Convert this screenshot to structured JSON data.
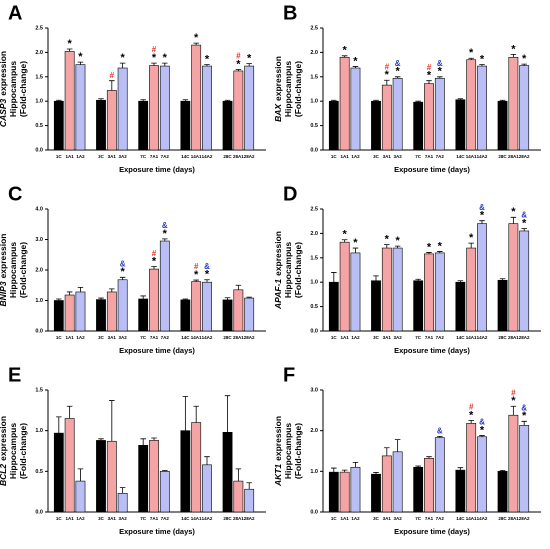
{
  "chart_data": [
    {
      "type": "bar",
      "panel": "A",
      "gene": "CASP3",
      "ylabel": [
        "expression",
        "Hippocampus",
        "(Fold-change)"
      ],
      "xlabel": "Exposure time (days)",
      "categories": [
        "1C",
        "1A1",
        "1A2",
        "3C",
        "3A1",
        "3A2",
        "7C",
        "7A1",
        "7A2",
        "14C",
        "14A1",
        "14A2",
        "28C",
        "28A1",
        "28A2"
      ],
      "values": [
        1.0,
        2.02,
        1.75,
        1.02,
        1.22,
        1.68,
        1.0,
        1.73,
        1.72,
        1.0,
        2.15,
        1.72,
        1.0,
        1.62,
        1.72
      ],
      "errors": [
        0.02,
        0.05,
        0.05,
        0.03,
        0.2,
        0.1,
        0.03,
        0.05,
        0.06,
        0.03,
        0.04,
        0.03,
        0.02,
        0.03,
        0.05
      ],
      "annotations": [
        [],
        [
          "*"
        ],
        [
          "*"
        ],
        [],
        [
          "#"
        ],
        [
          "*"
        ],
        [],
        [
          "*",
          "#"
        ],
        [
          "*"
        ],
        [],
        [
          "*"
        ],
        [
          "*"
        ],
        [],
        [
          "*",
          "#"
        ],
        [
          "*"
        ]
      ],
      "ylim": [
        0,
        2.5
      ],
      "yticks": [
        {
          "value": 0,
          "label": "0.0"
        },
        0.5,
        {
          "value": 1,
          "label": "1.0"
        },
        1.5,
        {
          "value": 2,
          "label": "2.0"
        },
        2.5
      ]
    },
    {
      "type": "bar",
      "panel": "B",
      "gene": "BAX",
      "ylabel": [
        "expression",
        "Hippocampus",
        "(Fold-change)"
      ],
      "xlabel": "Exposure time (days)",
      "categories": [
        "1C",
        "1A1",
        "1A2",
        "3C",
        "3A1",
        "3A2",
        "7C",
        "7A1",
        "7A2",
        "14C",
        "14A1",
        "14A2",
        "28C",
        "28A1",
        "28A2"
      ],
      "values": [
        1.0,
        1.9,
        1.68,
        1.0,
        1.33,
        1.47,
        0.98,
        1.36,
        1.47,
        1.03,
        1.85,
        1.72,
        1.0,
        1.9,
        1.73
      ],
      "errors": [
        0.02,
        0.03,
        0.03,
        0.02,
        0.1,
        0.03,
        0.02,
        0.06,
        0.03,
        0.02,
        0.03,
        0.03,
        0.02,
        0.06,
        0.03
      ],
      "annotations": [
        [],
        [
          "*"
        ],
        [
          "*"
        ],
        [],
        [
          "*",
          "#"
        ],
        [
          "*",
          "&"
        ],
        [],
        [
          "*",
          "#"
        ],
        [
          "*",
          "&"
        ],
        [],
        [
          "*"
        ],
        [
          "*"
        ],
        [],
        [
          "*"
        ],
        [
          "*"
        ]
      ],
      "ylim": [
        0,
        2.5
      ],
      "yticks": [
        {
          "value": 0,
          "label": "0.0"
        },
        0.5,
        {
          "value": 1,
          "label": "1.0"
        },
        1.5,
        {
          "value": 2,
          "label": "2.0"
        },
        2.5
      ]
    },
    {
      "type": "bar",
      "panel": "C",
      "gene": "BNIP3",
      "ylabel": [
        "expression",
        "Hippocampus",
        "(Fold-change)"
      ],
      "xlabel": "Exposure time (days)",
      "categories": [
        "1C",
        "1A1",
        "1A2",
        "3C",
        "3A1",
        "3A2",
        "7C",
        "7A1",
        "7A2",
        "14C",
        "14A1",
        "14A2",
        "28C",
        "28A1",
        "28A2"
      ],
      "values": [
        1.0,
        1.18,
        1.28,
        1.03,
        1.28,
        1.68,
        1.05,
        2.03,
        2.95,
        1.02,
        1.62,
        1.6,
        1.02,
        1.35,
        1.08
      ],
      "errors": [
        0.05,
        0.1,
        0.15,
        0.05,
        0.1,
        0.08,
        0.1,
        0.08,
        0.07,
        0.03,
        0.05,
        0.08,
        0.07,
        0.15,
        0.03
      ],
      "annotations": [
        [],
        [],
        [],
        [],
        [],
        [
          "*",
          "&"
        ],
        [],
        [
          "*",
          "#"
        ],
        [
          "*",
          "&"
        ],
        [],
        [
          "*",
          "#"
        ],
        [
          "*",
          "&"
        ],
        [],
        [],
        []
      ],
      "ylim": [
        0,
        4
      ],
      "yticks": [
        {
          "value": 0,
          "label": "0.0"
        },
        {
          "value": 1,
          "label": "1.0"
        },
        {
          "value": 2,
          "label": "2.0"
        },
        {
          "value": 3,
          "label": "3.0"
        },
        {
          "value": 4,
          "label": "4.0"
        }
      ]
    },
    {
      "type": "bar",
      "panel": "D",
      "gene": "APAF-1",
      "ylabel": [
        "expression",
        "Hippocampus",
        "(Fold-change)"
      ],
      "xlabel": "Exposure time (days)",
      "categories": [
        "1C",
        "1A1",
        "1A2",
        "3C",
        "3A1",
        "3A2",
        "7C",
        "7A1",
        "7A2",
        "14C",
        "14A1",
        "14A2",
        "28C",
        "28A1",
        "28A2"
      ],
      "values": [
        1.0,
        1.82,
        1.6,
        1.03,
        1.7,
        1.7,
        1.03,
        1.58,
        1.6,
        1.0,
        1.7,
        2.2,
        1.04,
        2.2,
        2.05
      ],
      "errors": [
        0.2,
        0.05,
        0.1,
        0.1,
        0.07,
        0.04,
        0.03,
        0.03,
        0.03,
        0.03,
        0.1,
        0.06,
        0.03,
        0.13,
        0.05
      ],
      "annotations": [
        [],
        [
          "*"
        ],
        [
          "*"
        ],
        [],
        [
          "*"
        ],
        [
          "*"
        ],
        [],
        [
          "*"
        ],
        [
          "*"
        ],
        [],
        [
          "*"
        ],
        [
          "*",
          "&"
        ],
        [],
        [
          "*"
        ],
        [
          "*",
          "&"
        ]
      ],
      "ylim": [
        0,
        2.5
      ],
      "yticks": [
        {
          "value": 0,
          "label": "0.0"
        },
        0.5,
        {
          "value": 1,
          "label": "1.0"
        },
        1.5,
        {
          "value": 2,
          "label": "2.0"
        },
        2.5
      ]
    },
    {
      "type": "bar",
      "panel": "E",
      "gene": "BCL2",
      "ylabel": [
        "expression",
        "Hippocampus",
        "(Fold-change)"
      ],
      "xlabel": "Exposure time (days)",
      "categories": [
        "1C",
        "1A1",
        "1A2",
        "3C",
        "3A1",
        "3A2",
        "7C",
        "7A1",
        "7A2",
        "14C",
        "14A1",
        "14A2",
        "28C",
        "28A1",
        "28A2"
      ],
      "values": [
        0.97,
        1.15,
        0.38,
        0.88,
        0.87,
        0.23,
        0.82,
        0.88,
        0.5,
        1.0,
        1.1,
        0.58,
        0.98,
        0.38,
        0.28
      ],
      "errors": [
        0.2,
        0.15,
        0.15,
        0.02,
        0.5,
        0.07,
        0.08,
        0.03,
        0.01,
        0.42,
        0.2,
        0.1,
        0.45,
        0.15,
        0.08
      ],
      "annotations": [
        [],
        [],
        [],
        [],
        [],
        [],
        [],
        [],
        [],
        [],
        [],
        [],
        [],
        [],
        []
      ],
      "ylim": [
        0,
        1.5
      ],
      "yticks": [
        {
          "value": 0,
          "label": "0.0"
        },
        0.5,
        {
          "value": 1,
          "label": "1.0"
        },
        1.5
      ]
    },
    {
      "type": "bar",
      "panel": "F",
      "gene": "AKT1",
      "ylabel": [
        "expression",
        "Hippocampus",
        "(Fold-change)"
      ],
      "xlabel": "Exposure time (days)",
      "categories": [
        "1C",
        "1A1",
        "1A2",
        "3C",
        "3A1",
        "3A2",
        "7C",
        "7A1",
        "7A2",
        "14C",
        "14A1",
        "14A2",
        "28C",
        "28A1",
        "28A2"
      ],
      "values": [
        0.98,
        0.98,
        1.1,
        0.93,
        1.38,
        1.48,
        1.1,
        1.32,
        1.83,
        1.03,
        2.18,
        1.85,
        1.0,
        2.38,
        2.13
      ],
      "errors": [
        0.1,
        0.05,
        0.12,
        0.04,
        0.2,
        0.3,
        0.03,
        0.04,
        0.03,
        0.06,
        0.07,
        0.03,
        0.02,
        0.22,
        0.1
      ],
      "annotations": [
        [],
        [],
        [],
        [],
        [],
        [],
        [],
        [],
        [
          "&"
        ],
        [],
        [
          "*",
          "#"
        ],
        [
          "*",
          "&"
        ],
        [],
        [
          "*",
          "#"
        ],
        [
          "*",
          "&"
        ]
      ],
      "ylim": [
        0,
        3
      ],
      "yticks": [
        {
          "value": 0,
          "label": "0.0"
        },
        {
          "value": 1,
          "label": "1.0"
        },
        {
          "value": 2,
          "label": "2.0"
        },
        {
          "value": 3,
          "label": "3.0"
        }
      ]
    }
  ],
  "colors": [
    "#000000",
    "#f4a4a4",
    "#b9bff5"
  ],
  "annotation_colors": {
    "*": "#000000",
    "#": "#e8302a",
    "&": "#2a3cc8"
  }
}
